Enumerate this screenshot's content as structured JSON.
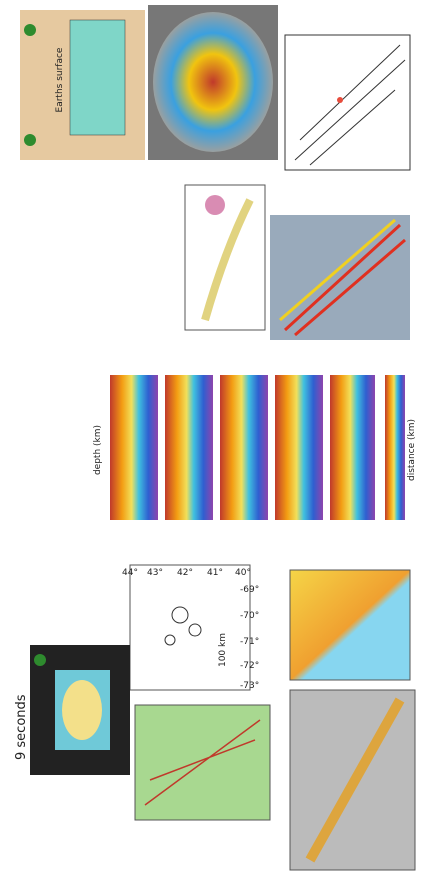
{
  "animation": {
    "label": "9 seconds"
  },
  "block_diagram": {
    "label": "Earths surface"
  },
  "seismicity_map": {
    "scale": "100 km",
    "lat_ticks": [
      "44°",
      "43°",
      "42°",
      "41°",
      "40°"
    ],
    "lon_ticks": [
      "-73°",
      "-72°",
      "-71°",
      "-70°",
      "-69°"
    ]
  },
  "cross_sections": {
    "depth_label": "depth (km)",
    "distance_label": "distance (km)"
  }
}
